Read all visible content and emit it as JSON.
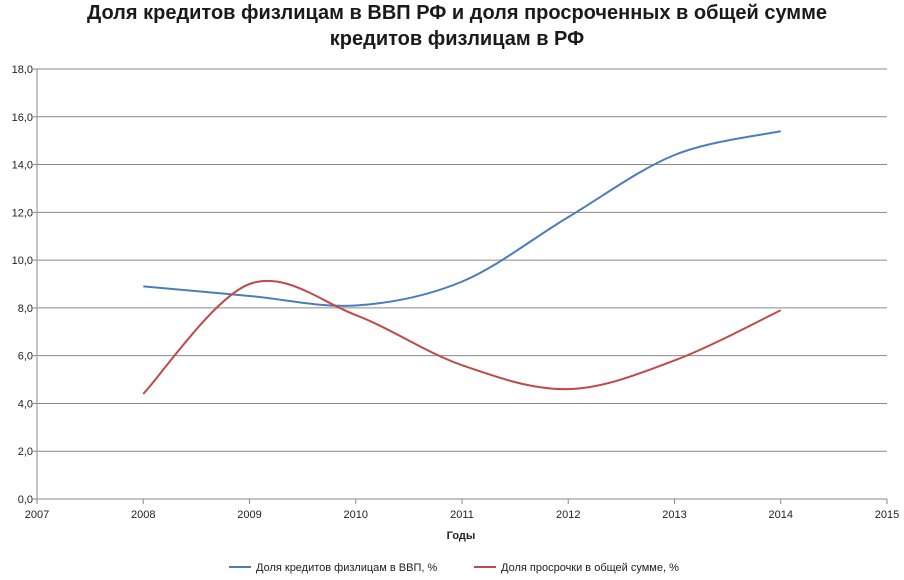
{
  "chart_data": {
    "type": "line",
    "title": [
      "Доля кредитов физлицам в ВВП РФ и доля просроченных в общей сумме",
      "кредитов физлицам в РФ"
    ],
    "xlabel": "Годы",
    "ylabel": "",
    "x": [
      2008,
      2009,
      2010,
      2011,
      2012,
      2013,
      2014
    ],
    "xlim": [
      2007,
      2015
    ],
    "xticks": [
      "2007",
      "2008",
      "2009",
      "2010",
      "2011",
      "2012",
      "2013",
      "2014",
      "2015"
    ],
    "ylim": [
      0,
      18
    ],
    "yticks": [
      "0,0",
      "2,0",
      "4,0",
      "6,0",
      "8,0",
      "10,0",
      "12,0",
      "14,0",
      "16,0",
      "18,0"
    ],
    "grid": true,
    "legend_position": "bottom",
    "series": [
      {
        "name": "Доля кредитов физлицам в ВВП, %",
        "color": "#4a7ebb",
        "values": [
          8.9,
          8.5,
          8.1,
          9.1,
          11.8,
          14.4,
          15.4
        ]
      },
      {
        "name": "Доля просрочки в общей сумме, %",
        "color": "#be4b48",
        "values": [
          4.4,
          9.0,
          7.7,
          5.6,
          4.6,
          5.8,
          7.9
        ]
      }
    ]
  }
}
